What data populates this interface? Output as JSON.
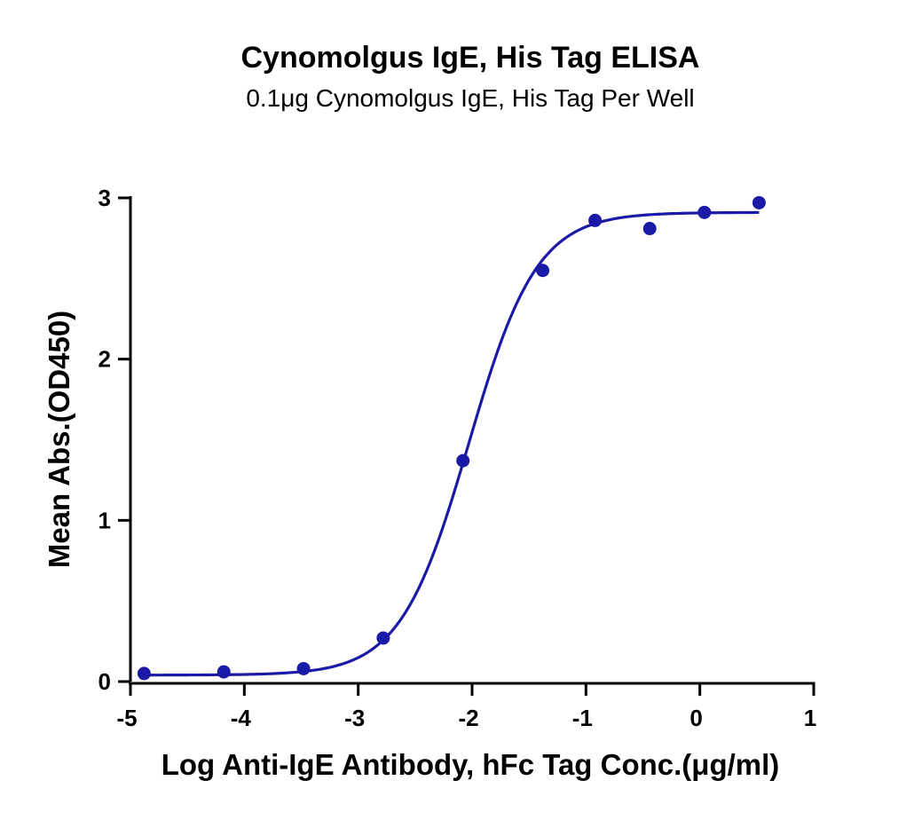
{
  "chart_data": {
    "type": "scatter",
    "title": "Cynomolgus IgE, His Tag ELISA",
    "subtitle": "0.1μg Cynomolgus IgE, His Tag Per Well",
    "xlabel": "Log Anti-IgE Antibody, hFc Tag Conc.(μg/ml)",
    "ylabel": "Mean Abs.(OD450)",
    "xlim": [
      -5,
      1
    ],
    "ylim": [
      0,
      3
    ],
    "x_ticks": [
      "-5",
      "-4",
      "-3",
      "-2",
      "-1",
      "0",
      "1"
    ],
    "y_ticks": [
      "0",
      "1",
      "2",
      "3"
    ],
    "grid": false,
    "series": [
      {
        "x": [
          -4.88,
          -4.18,
          -3.48,
          -2.78,
          -2.08,
          -1.38,
          -0.92,
          -0.44,
          0.04,
          0.52
        ],
        "y": [
          0.05,
          0.06,
          0.08,
          0.27,
          1.37,
          2.55,
          2.86,
          2.81,
          2.91,
          2.97
        ],
        "fit": {
          "bottom": 0.04,
          "top": 2.91,
          "logEC50": -2.03,
          "hillslope": 1.45
        },
        "color": "#1a1aa6"
      }
    ]
  }
}
